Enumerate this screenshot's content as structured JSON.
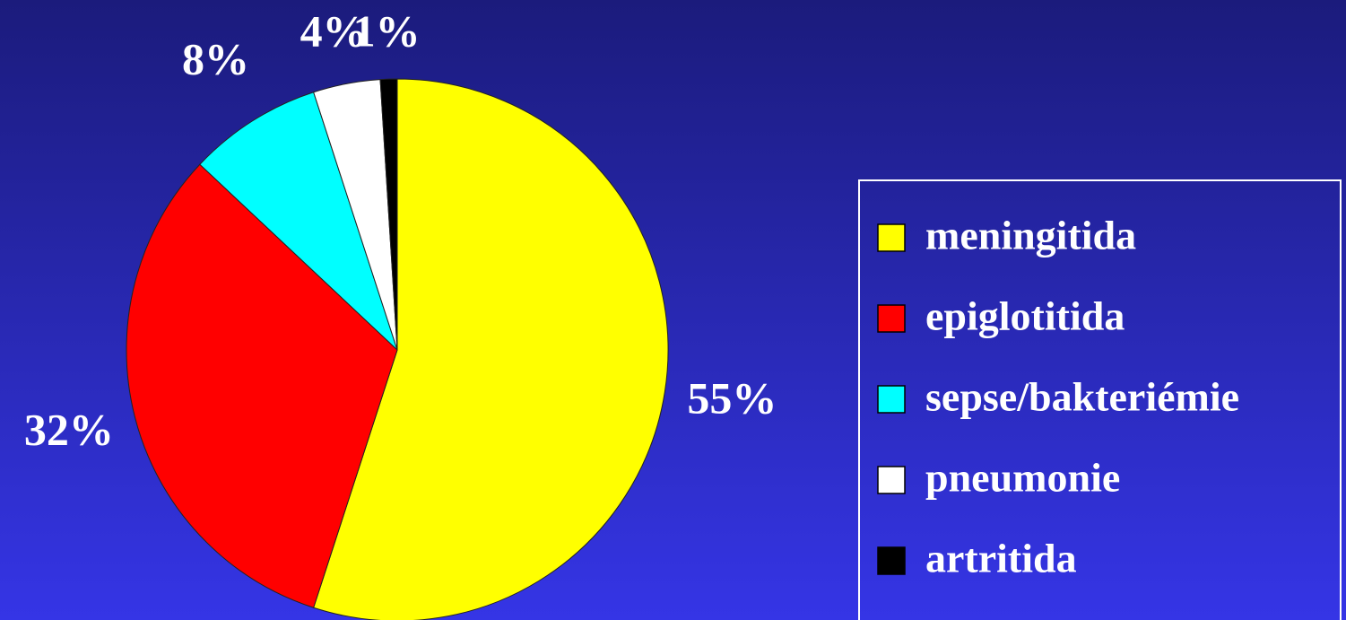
{
  "chart_data": {
    "type": "pie",
    "categories": [
      "meningitida",
      "epiglotitida",
      "sepse/bakteriémie",
      "pneumonie",
      "artritida"
    ],
    "values": [
      55,
      32,
      8,
      4,
      1
    ],
    "value_labels": [
      "55%",
      "32%",
      "8%",
      "4%",
      "1%"
    ],
    "colors": [
      "#ffff00",
      "#ff0000",
      "#00ffff",
      "#ffffff",
      "#000000"
    ],
    "legend": "right"
  }
}
